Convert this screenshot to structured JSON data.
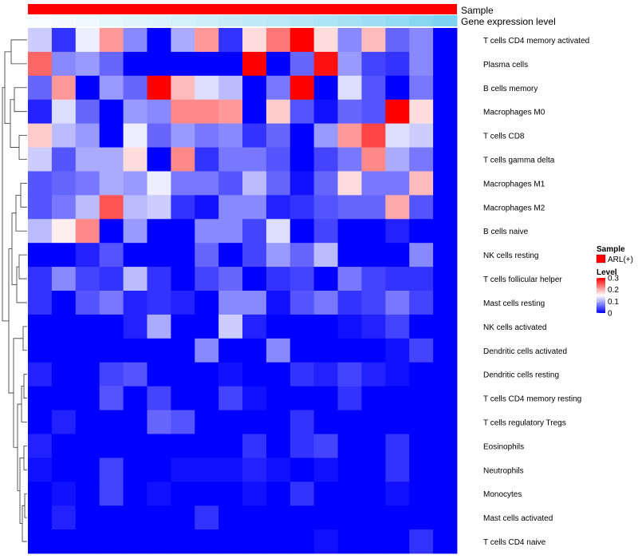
{
  "chart_data": {
    "type": "heatmap",
    "annotation_labels": [
      "Sample",
      "Gene expression level"
    ],
    "columns": 18,
    "sample_group": "ARL(+)",
    "gene_expression_level": [
      0.03,
      0.07,
      0.11,
      0.15,
      0.19,
      0.22,
      0.26,
      0.3,
      0.34,
      0.38,
      0.42,
      0.46,
      0.5,
      0.55,
      0.6,
      0.66,
      0.73,
      0.8
    ],
    "rows": [
      "T cells CD4 memory activated",
      "Plasma cells",
      "B cells memory",
      "Macrophages M0",
      "T cells CD8",
      "T cells gamma delta",
      "Macrophages M1",
      "Macrophages M2",
      "B cells naive",
      "NK cells resting",
      "T cells follicular helper",
      "Mast cells resting",
      "NK cells activated",
      "Dendritic cells activated",
      "Dendritic cells resting",
      "T cells CD4 memory resting",
      "T cells regulatory  Tregs",
      "Eosinophils",
      "Neutrophils",
      "Monocytes",
      "Mast cells activated",
      "T cells CD4 naive"
    ],
    "values": [
      [
        0.12,
        0.03,
        0.14,
        0.21,
        0.08,
        0.0,
        0.1,
        0.21,
        0.03,
        0.17,
        0.23,
        0.3,
        0.17,
        0.08,
        0.19,
        0.06,
        0.08,
        null
      ],
      [
        0.24,
        0.08,
        0.09,
        0.06,
        0.0,
        0.0,
        0.0,
        0.0,
        0.0,
        0.3,
        0.0,
        0.06,
        0.29,
        0.09,
        0.04,
        0.03,
        0.08,
        null
      ],
      [
        0.06,
        0.21,
        0.0,
        0.09,
        0.06,
        0.3,
        0.19,
        0.13,
        0.11,
        0.0,
        0.07,
        0.3,
        0.0,
        0.13,
        0.05,
        0.0,
        0.07,
        null
      ],
      [
        0.02,
        0.13,
        0.06,
        0.0,
        0.09,
        0.08,
        0.22,
        0.22,
        0.21,
        0.0,
        0.18,
        0.05,
        0.01,
        0.06,
        0.05,
        0.3,
        0.17,
        null
      ],
      [
        0.18,
        0.11,
        0.09,
        0.0,
        0.14,
        0.06,
        0.09,
        0.07,
        0.08,
        0.03,
        0.06,
        0.0,
        0.09,
        0.21,
        0.26,
        0.13,
        0.12,
        null
      ],
      [
        0.12,
        0.05,
        0.1,
        0.1,
        0.17,
        0.0,
        0.22,
        0.03,
        0.07,
        0.07,
        0.05,
        0.0,
        0.04,
        0.07,
        0.22,
        0.1,
        0.07,
        null
      ],
      [
        0.05,
        0.06,
        0.07,
        0.1,
        0.09,
        0.14,
        0.07,
        0.07,
        0.05,
        0.11,
        0.06,
        0.01,
        0.06,
        0.17,
        0.07,
        0.07,
        0.19,
        null
      ],
      [
        0.05,
        0.07,
        0.11,
        0.25,
        0.11,
        0.12,
        0.03,
        0.01,
        0.08,
        0.08,
        0.02,
        0.03,
        0.05,
        0.06,
        0.06,
        0.2,
        0.05,
        null
      ],
      [
        0.11,
        0.16,
        0.22,
        0.0,
        0.09,
        0.0,
        0.0,
        0.08,
        0.08,
        0.04,
        0.13,
        0.0,
        0.04,
        0.0,
        0.0,
        0.02,
        0.0,
        null
      ],
      [
        0.0,
        0.0,
        0.02,
        0.05,
        0.0,
        0.0,
        0.0,
        0.06,
        0.0,
        0.04,
        0.09,
        0.06,
        0.11,
        0.0,
        0.0,
        0.0,
        0.08,
        null
      ],
      [
        0.03,
        0.08,
        0.04,
        0.03,
        0.11,
        0.03,
        0.0,
        0.04,
        0.06,
        0.0,
        0.03,
        0.04,
        0.0,
        0.07,
        0.04,
        0.03,
        0.03,
        null
      ],
      [
        0.03,
        0.0,
        0.05,
        0.07,
        0.02,
        0.03,
        0.02,
        0.0,
        0.08,
        0.08,
        0.01,
        0.05,
        0.07,
        0.03,
        0.04,
        0.07,
        0.04,
        null
      ],
      [
        0.0,
        0.0,
        0.0,
        0.0,
        0.02,
        0.1,
        0.0,
        0.0,
        0.12,
        0.02,
        0.0,
        0.0,
        0.0,
        0.01,
        0.02,
        0.04,
        0.0,
        null
      ],
      [
        0.0,
        0.0,
        0.0,
        0.0,
        0.0,
        0.0,
        0.0,
        0.08,
        0.0,
        0.0,
        0.08,
        0.0,
        0.0,
        0.0,
        0.0,
        0.01,
        0.04,
        null
      ],
      [
        0.02,
        0.0,
        0.0,
        0.04,
        0.05,
        0.0,
        0.0,
        0.0,
        0.01,
        0.0,
        0.0,
        0.03,
        0.02,
        0.04,
        0.02,
        0.01,
        0.0,
        null
      ],
      [
        0.0,
        0.0,
        0.0,
        0.05,
        0.0,
        0.04,
        0.0,
        0.0,
        0.04,
        0.01,
        0.0,
        0.0,
        0.0,
        0.03,
        0.0,
        0.0,
        0.0,
        null
      ],
      [
        0.0,
        0.02,
        0.0,
        0.0,
        0.0,
        0.06,
        0.05,
        0.0,
        0.0,
        0.0,
        0.0,
        0.03,
        0.0,
        0.0,
        0.0,
        0.0,
        0.0,
        null
      ],
      [
        0.02,
        0.0,
        0.0,
        0.0,
        0.0,
        0.0,
        0.0,
        0.0,
        0.0,
        0.03,
        0.0,
        0.03,
        0.04,
        0.0,
        0.0,
        0.03,
        0.0,
        null
      ],
      [
        0.01,
        0.0,
        0.0,
        0.04,
        0.0,
        0.0,
        0.01,
        0.01,
        0.01,
        0.02,
        0.01,
        0.0,
        0.01,
        0.0,
        0.0,
        0.03,
        0.0,
        null
      ],
      [
        0.0,
        0.01,
        0.0,
        0.04,
        0.0,
        0.01,
        0.0,
        0.0,
        0.0,
        0.01,
        0.0,
        0.03,
        0.0,
        0.0,
        0.0,
        0.01,
        0.0,
        null
      ],
      [
        0.0,
        0.02,
        0.0,
        0.0,
        0.0,
        0.0,
        0.0,
        0.03,
        0.0,
        0.0,
        0.0,
        0.0,
        0.0,
        0.0,
        0.0,
        0.0,
        0.0,
        null
      ],
      [
        0.0,
        0.0,
        0.0,
        0.0,
        0.0,
        0.0,
        0.0,
        0.0,
        0.0,
        0.0,
        0.0,
        0.0,
        0.01,
        0.0,
        0.0,
        0.0,
        0.03,
        null
      ]
    ],
    "legend": {
      "sample_title": "Sample",
      "sample_label": "ARL(+)",
      "sample_color": "#ff0000",
      "level_title": "Level",
      "ticks": [
        "0.3",
        "0.2",
        "0.1",
        "0"
      ],
      "range": [
        0,
        0.3
      ],
      "colors": {
        "low": "#0000ff",
        "mid": "#ffffff",
        "high": "#ff0000",
        "gene_low": "#ffffff",
        "gene_high": "#5bc8ec"
      }
    }
  }
}
